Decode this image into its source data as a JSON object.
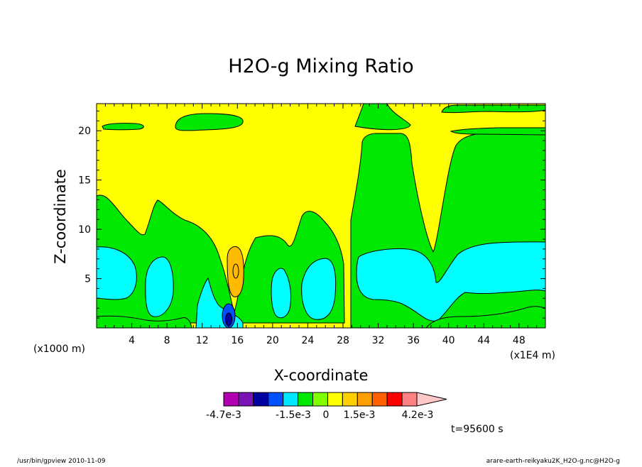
{
  "chart_data": {
    "type": "contour",
    "title": "H2O-g Mixing Ratio",
    "xlabel": "X-coordinate",
    "ylabel": "Z-coordinate",
    "x_units_note": "(x1E4 m)",
    "y_units_note": "(x1000 m)",
    "xlim": [
      0,
      51
    ],
    "ylim": [
      0,
      22.75
    ],
    "x_ticks": [
      "4",
      "8",
      "12",
      "16",
      "20",
      "24",
      "28",
      "32",
      "36",
      "40",
      "44",
      "48"
    ],
    "y_ticks": [
      "5",
      "10",
      "15",
      "20"
    ],
    "time_label": "t=95600 s",
    "colorbar": {
      "colors": [
        "#b000b0",
        "#7a12b4",
        "#0000a0",
        "#0050ff",
        "#00e8ff",
        "#00e800",
        "#80ff00",
        "#ffff00",
        "#ffd000",
        "#ffa000",
        "#ff6000",
        "#ff0000",
        "#ff8080",
        "#ffc8c8"
      ],
      "labels": [
        "-4.7e-3",
        "-1.5e-3",
        "0",
        "1.5e-3",
        "4.2e-3"
      ]
    },
    "region_colors": {
      "yellow": "#ffff00",
      "green": "#00e800",
      "cyan": "#00ffff",
      "orange": "#ffbb00",
      "blue": "#0050ff",
      "darkblue": "#0000a0"
    }
  },
  "footer": {
    "left": "/usr/bin/gpview   2010-11-09",
    "right": "arare-earth-reikyaku2K_H2O-g.nc@H2O-g"
  }
}
